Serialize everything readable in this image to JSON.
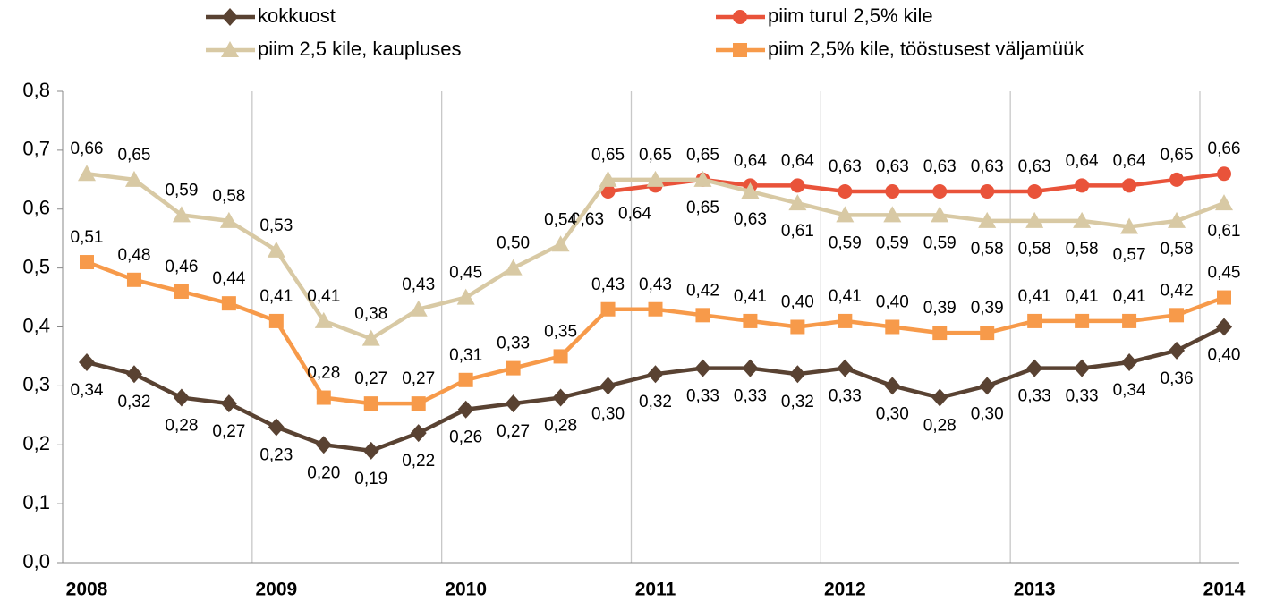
{
  "chart_data": {
    "type": "line",
    "categories": [
      "2008",
      null,
      null,
      null,
      "2009",
      null,
      null,
      null,
      "2010",
      null,
      null,
      null,
      "2011",
      null,
      null,
      null,
      "2012",
      null,
      null,
      null,
      "2013",
      null,
      null,
      null,
      "2014"
    ],
    "ylim": [
      0,
      0.8
    ],
    "yticks": [
      {
        "value": 0,
        "label": "0,0"
      },
      {
        "value": 0.1,
        "label": "0,1"
      },
      {
        "value": 0.2,
        "label": "0,2"
      },
      {
        "value": 0.3,
        "label": "0,3"
      },
      {
        "value": 0.4,
        "label": "0,4"
      },
      {
        "value": 0.5,
        "label": "0,5"
      },
      {
        "value": 0.6,
        "label": "0,6"
      },
      {
        "value": 0.7,
        "label": "0,7"
      },
      {
        "value": 0.8,
        "label": "0,8"
      }
    ],
    "grid": "x",
    "series": [
      {
        "name": "kokkuost",
        "color": "#594232",
        "marker": "diamond",
        "values": [
          0.34,
          0.32,
          0.28,
          0.27,
          0.23,
          0.2,
          0.19,
          0.22,
          0.26,
          0.27,
          0.28,
          0.3,
          0.32,
          0.33,
          0.33,
          0.32,
          0.33,
          0.3,
          0.28,
          0.3,
          0.33,
          0.33,
          0.34,
          0.36,
          0.4
        ],
        "value_labels": [
          "0,34",
          "0,32",
          "0,28",
          "0,27",
          "0,23",
          "0,20",
          "0,19",
          "0,22",
          "0,26",
          "0,27",
          "0,28",
          "0,30",
          "0,32",
          "0,33",
          "0,33",
          "0,32",
          "0,33",
          "0,30",
          "0,28",
          "0,30",
          "0,33",
          "0,33",
          "0,34",
          "0,36",
          "0,40"
        ]
      },
      {
        "name": "piim turul 2,5% kile",
        "color": "#e9533a",
        "marker": "circle",
        "values": [
          null,
          null,
          null,
          null,
          null,
          null,
          null,
          null,
          null,
          null,
          null,
          0.63,
          0.64,
          0.65,
          0.64,
          0.64,
          0.63,
          0.63,
          0.63,
          0.63,
          0.63,
          0.64,
          0.64,
          0.65,
          0.66
        ],
        "value_labels": [
          null,
          null,
          null,
          null,
          null,
          null,
          null,
          null,
          null,
          null,
          null,
          "0,63",
          "0,64",
          "0,65",
          "0,64",
          "0,64",
          "0,63",
          "0,63",
          "0,63",
          "0,63",
          "0,63",
          "0,64",
          "0,64",
          "0,65",
          "0,66"
        ]
      },
      {
        "name": "piim 2,5 kile, kaupluses",
        "color": "#d8c9a4",
        "marker": "triangle",
        "values": [
          0.66,
          0.65,
          0.59,
          0.58,
          0.53,
          0.41,
          0.38,
          0.43,
          0.45,
          0.5,
          0.54,
          0.65,
          0.65,
          0.65,
          0.63,
          0.61,
          0.59,
          0.59,
          0.59,
          0.58,
          0.58,
          0.58,
          0.57,
          0.58,
          0.61
        ],
        "value_labels": [
          "0,66",
          "0,65",
          "0,59",
          "0,58",
          "0,53",
          "0,41",
          "0,38",
          "0,43",
          "0,45",
          "0,50",
          "0,54",
          "0,65",
          "0,65",
          "0,65",
          "0,63",
          "0,61",
          "0,59",
          "0,59",
          "0,59",
          "0,58",
          "0,58",
          "0,58",
          "0,57",
          "0,58",
          "0,61"
        ]
      },
      {
        "name": "piim 2,5% kile, tööstusest väljamüük",
        "color": "#f79a4a",
        "marker": "square",
        "values": [
          0.51,
          0.48,
          0.46,
          0.44,
          0.41,
          0.28,
          0.27,
          0.27,
          0.31,
          0.33,
          0.35,
          0.43,
          0.43,
          0.42,
          0.41,
          0.4,
          0.41,
          0.4,
          0.39,
          0.39,
          0.41,
          0.41,
          0.41,
          0.42,
          0.45
        ],
        "value_labels": [
          "0,51",
          "0,48",
          "0,46",
          "0,44",
          "0,41",
          "0,28",
          "0,27",
          "0,27",
          "0,31",
          "0,33",
          "0,35",
          "0,43",
          "0,43",
          "0,42",
          "0,41",
          "0,40",
          "0,41",
          "0,40",
          "0,39",
          "0,39",
          "0,41",
          "0,41",
          "0,41",
          "0,42",
          "0,45"
        ]
      }
    ]
  }
}
